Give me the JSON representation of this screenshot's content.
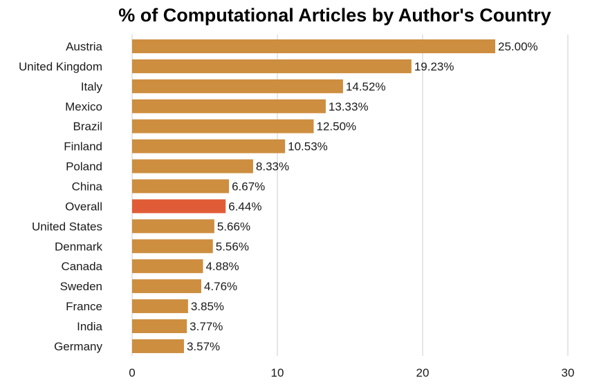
{
  "chart_data": {
    "type": "bar",
    "orientation": "horizontal",
    "title": "% of Computational Articles by Author's Country",
    "xlabel": "",
    "ylabel": "",
    "xlim": [
      0,
      30
    ],
    "xticks": [
      0,
      10,
      20,
      30
    ],
    "grid": "vertical",
    "legend": "none",
    "categories": [
      "Austria",
      "United Kingdom",
      "Italy",
      "Mexico",
      "Brazil",
      "Finland",
      "Poland",
      "China",
      "Overall",
      "United States",
      "Denmark",
      "Canada",
      "Sweden",
      "France",
      "India",
      "Germany"
    ],
    "values": [
      25.0,
      19.23,
      14.52,
      13.33,
      12.5,
      10.53,
      8.33,
      6.67,
      6.44,
      5.66,
      5.56,
      4.88,
      4.76,
      3.85,
      3.77,
      3.57
    ],
    "value_labels": [
      "25.00%",
      "19.23%",
      "14.52%",
      "13.33%",
      "12.50%",
      "10.53%",
      "8.33%",
      "6.67%",
      "6.44%",
      "5.66%",
      "5.56%",
      "4.88%",
      "4.76%",
      "3.85%",
      "3.77%",
      "3.57%"
    ],
    "colors": {
      "default": "#CD8E40",
      "highlight": "#E05C37"
    },
    "highlight_category": "Overall"
  }
}
